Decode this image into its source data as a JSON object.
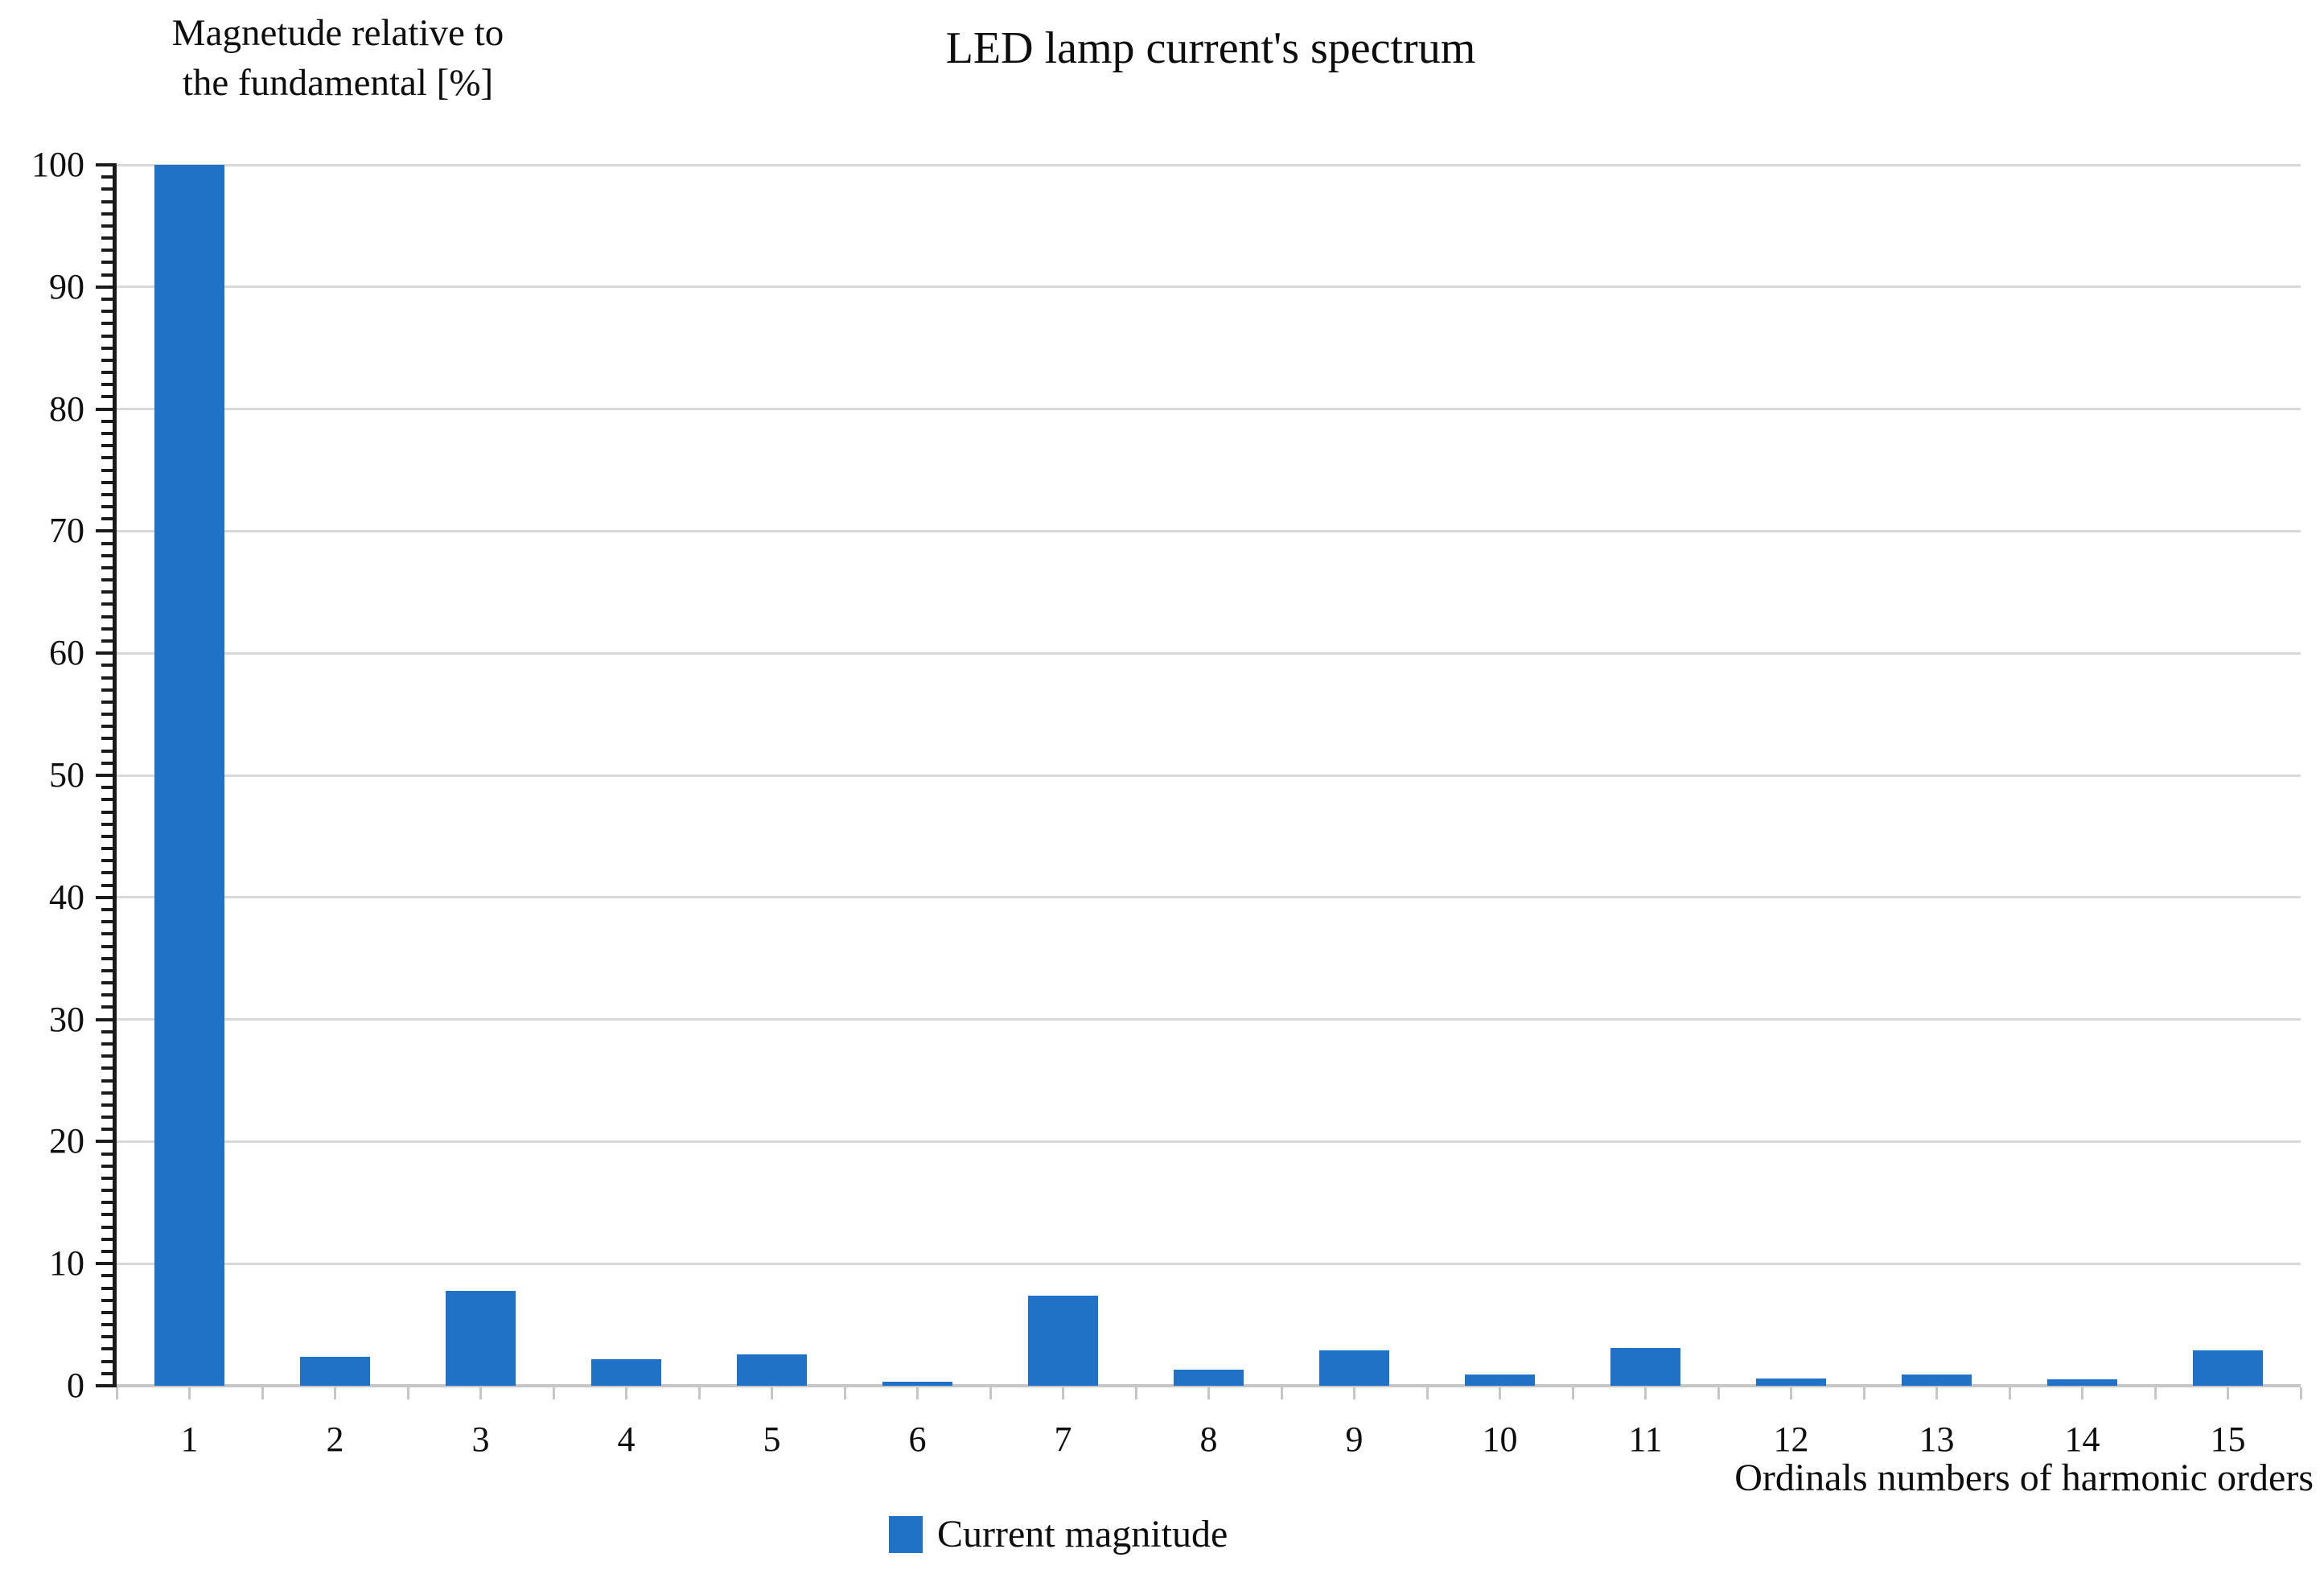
{
  "title": "LED lamp current's spectrum",
  "y_axis_title_line1": "Magnetude relative to",
  "y_axis_title_line2": "the fundamental [%]",
  "x_axis_title": "Ordinals numbers of harmonic orders",
  "legend": {
    "label": "Current magnitude",
    "swatch_color": "#1f72c8"
  },
  "colors": {
    "bar": "#1f72c8",
    "gridline": "#d9d9d9",
    "y_axis": "#1a1a1a",
    "x_axis": "#c6c6c6",
    "text": "#0d0d0d"
  },
  "chart_data": {
    "type": "bar",
    "title": "LED lamp current's spectrum",
    "xlabel": "Ordinals numbers of harmonic orders",
    "ylabel": "Magnetude relative to the fundamental [%]",
    "categories": [
      "1",
      "2",
      "3",
      "4",
      "5",
      "6",
      "7",
      "8",
      "9",
      "10",
      "11",
      "12",
      "13",
      "14",
      "15"
    ],
    "series": [
      {
        "name": "Current magnitude",
        "values": [
          100,
          2.4,
          7.8,
          2.2,
          2.6,
          0.3,
          7.4,
          1.3,
          2.9,
          0.9,
          3.1,
          0.6,
          0.9,
          0.5,
          2.9
        ]
      }
    ],
    "ylim": [
      0,
      100
    ],
    "yticks": [
      0,
      10,
      20,
      30,
      40,
      50,
      60,
      70,
      80,
      90,
      100
    ],
    "y_minor_tick_interval": 1,
    "grid": "horizontal",
    "legend_position": "bottom"
  }
}
